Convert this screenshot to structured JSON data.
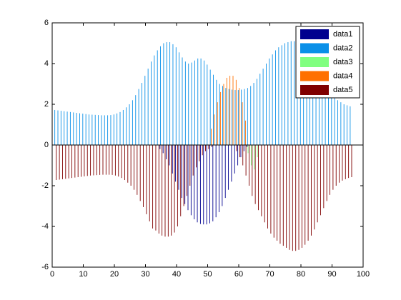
{
  "chart_data": {
    "type": "bar",
    "x": [
      1,
      2,
      3,
      4,
      5,
      6,
      7,
      8,
      9,
      10,
      11,
      12,
      13,
      14,
      15,
      16,
      17,
      18,
      19,
      20,
      21,
      22,
      23,
      24,
      25,
      26,
      27,
      28,
      29,
      30,
      31,
      32,
      33,
      34,
      35,
      36,
      37,
      38,
      39,
      40,
      41,
      42,
      43,
      44,
      45,
      46,
      47,
      48,
      49,
      50,
      51,
      52,
      53,
      54,
      55,
      56,
      57,
      58,
      59,
      60,
      61,
      62,
      63,
      64,
      65,
      66,
      67,
      68,
      69,
      70,
      71,
      72,
      73,
      74,
      75,
      76,
      77,
      78,
      79,
      80,
      81,
      82,
      83,
      84,
      85,
      86,
      87,
      88,
      89,
      90,
      91,
      92,
      93,
      94,
      95,
      96
    ],
    "series": [
      {
        "name": "data1",
        "color": "#00008f",
        "values": [
          0,
          0,
          0,
          0,
          0,
          0,
          0,
          0,
          0,
          0,
          0,
          0,
          0,
          0,
          0,
          0,
          0,
          0,
          0,
          0,
          0,
          0,
          0,
          0,
          0,
          0,
          0,
          0,
          0,
          0,
          0,
          0,
          0,
          0,
          -0.2,
          -0.4,
          -0.7,
          -1.0,
          -1.4,
          -1.8,
          -2.2,
          -2.6,
          -2.9,
          -3.2,
          -3.45,
          -3.65,
          -3.8,
          -3.88,
          -3.9,
          -3.9,
          -3.85,
          -3.75,
          -3.55,
          -3.3,
          -3.0,
          -2.6,
          -2.2,
          -1.8,
          -1.4,
          -1.0,
          -0.6,
          -0.3,
          -0.1,
          0,
          0,
          0,
          0,
          0,
          0,
          0,
          0,
          0,
          0,
          0,
          0,
          0,
          0,
          0,
          0,
          0,
          0,
          0,
          0,
          0,
          0,
          0,
          0,
          0,
          0,
          0,
          0,
          0,
          0,
          0,
          0,
          0
        ]
      },
      {
        "name": "data2",
        "color": "#0a90e8",
        "values": [
          1.72,
          1.7,
          1.68,
          1.66,
          1.64,
          1.62,
          1.6,
          1.58,
          1.56,
          1.54,
          1.52,
          1.5,
          1.49,
          1.48,
          1.47,
          1.46,
          1.46,
          1.46,
          1.47,
          1.5,
          1.55,
          1.62,
          1.72,
          1.85,
          2.0,
          2.2,
          2.45,
          2.75,
          3.05,
          3.4,
          3.75,
          4.1,
          4.4,
          4.65,
          4.85,
          5.0,
          5.05,
          5.05,
          4.95,
          4.8,
          4.55,
          4.3,
          4.1,
          4.0,
          4.05,
          4.15,
          4.25,
          4.25,
          4.15,
          3.95,
          3.7,
          3.45,
          3.2,
          3.0,
          2.9,
          2.8,
          2.75,
          2.72,
          2.7,
          2.7,
          2.72,
          2.75,
          2.8,
          2.9,
          3.05,
          3.25,
          3.5,
          3.75,
          4.0,
          4.25,
          4.45,
          4.65,
          4.8,
          4.9,
          5.0,
          5.05,
          5.1,
          5.1,
          5.05,
          5.0,
          4.9,
          4.75,
          4.55,
          4.3,
          4.0,
          3.7,
          3.4,
          3.1,
          2.8,
          2.55,
          2.35,
          2.2,
          2.1,
          2.0,
          1.95,
          1.9
        ]
      },
      {
        "name": "data3",
        "color": "#80ff80",
        "values": [
          0,
          0,
          0,
          0,
          0,
          0,
          0,
          0,
          0,
          0,
          0,
          0,
          0,
          0,
          0,
          0,
          0,
          0,
          0,
          0,
          0,
          0,
          0,
          0,
          0,
          0,
          0,
          0,
          0,
          0,
          0,
          0,
          0,
          0,
          0,
          0,
          0,
          0,
          0,
          0,
          0,
          0,
          0,
          0,
          0,
          0,
          0,
          0,
          0,
          0,
          0,
          0,
          0,
          0,
          0,
          0,
          0,
          0,
          0,
          0,
          0,
          0,
          -0.4,
          -1.0,
          -1.2,
          -0.6,
          0,
          0,
          0,
          0,
          0,
          0,
          0,
          0,
          0,
          0,
          0,
          0,
          0,
          0,
          0,
          0,
          0,
          0,
          0,
          0,
          0,
          0,
          0,
          0,
          0,
          0,
          0,
          0,
          0,
          0
        ]
      },
      {
        "name": "data4",
        "color": "#ff7000",
        "values": [
          0,
          0,
          0,
          0,
          0,
          0,
          0,
          0,
          0,
          0,
          0,
          0,
          0,
          0,
          0,
          0,
          0,
          0,
          0,
          0,
          0,
          0,
          0,
          0,
          0,
          0,
          0,
          0,
          0,
          0,
          0,
          0,
          0,
          0,
          0,
          0,
          0,
          0,
          0,
          0,
          0,
          0,
          0,
          0,
          0,
          0,
          0,
          0,
          0,
          0,
          0.8,
          1.5,
          2.1,
          2.6,
          3.0,
          3.3,
          3.4,
          3.4,
          3.2,
          2.8,
          2.1,
          1.2,
          0,
          0,
          0,
          0,
          0,
          0,
          0,
          0,
          0,
          0,
          0,
          0,
          0,
          0,
          0,
          0,
          0,
          0,
          0,
          0,
          0,
          0,
          0,
          0,
          0,
          0,
          0,
          0,
          0,
          0,
          0,
          0,
          0,
          0
        ]
      },
      {
        "name": "data5",
        "color": "#800000",
        "values": [
          -1.72,
          -1.7,
          -1.68,
          -1.66,
          -1.64,
          -1.62,
          -1.6,
          -1.58,
          -1.56,
          -1.54,
          -1.52,
          -1.5,
          -1.49,
          -1.48,
          -1.47,
          -1.46,
          -1.46,
          -1.46,
          -1.47,
          -1.5,
          -1.55,
          -1.62,
          -1.72,
          -1.85,
          -2.0,
          -2.2,
          -2.45,
          -2.75,
          -3.05,
          -3.4,
          -3.75,
          -4.1,
          -4.2,
          -4.35,
          -4.45,
          -4.5,
          -4.5,
          -4.45,
          -4.3,
          -4.0,
          -3.5,
          -3.0,
          -2.5,
          -2.0,
          -1.5,
          -1.1,
          -0.8,
          -0.5,
          -0.3,
          -0.2,
          -0.1,
          0,
          0,
          0,
          0,
          0,
          0,
          0,
          -0.3,
          -0.6,
          -1.0,
          -1.5,
          -2.0,
          -2.5,
          -2.9,
          -3.2,
          -3.5,
          -3.8,
          -4.1,
          -4.35,
          -4.55,
          -4.7,
          -4.85,
          -4.95,
          -5.05,
          -5.15,
          -5.2,
          -5.2,
          -5.15,
          -5.05,
          -4.9,
          -4.7,
          -4.45,
          -4.15,
          -3.8,
          -3.45,
          -3.1,
          -2.75,
          -2.45,
          -2.2,
          -2.0,
          -1.85,
          -1.75,
          -1.68,
          -1.62,
          -1.58
        ]
      }
    ],
    "xlim": [
      0,
      100
    ],
    "xticks": [
      0,
      10,
      20,
      30,
      40,
      50,
      60,
      70,
      80,
      90,
      100
    ],
    "ylim": [
      -6,
      6
    ],
    "yticks": [
      -6,
      -4,
      -2,
      0,
      2,
      4,
      6
    ],
    "legend": "top-right"
  }
}
